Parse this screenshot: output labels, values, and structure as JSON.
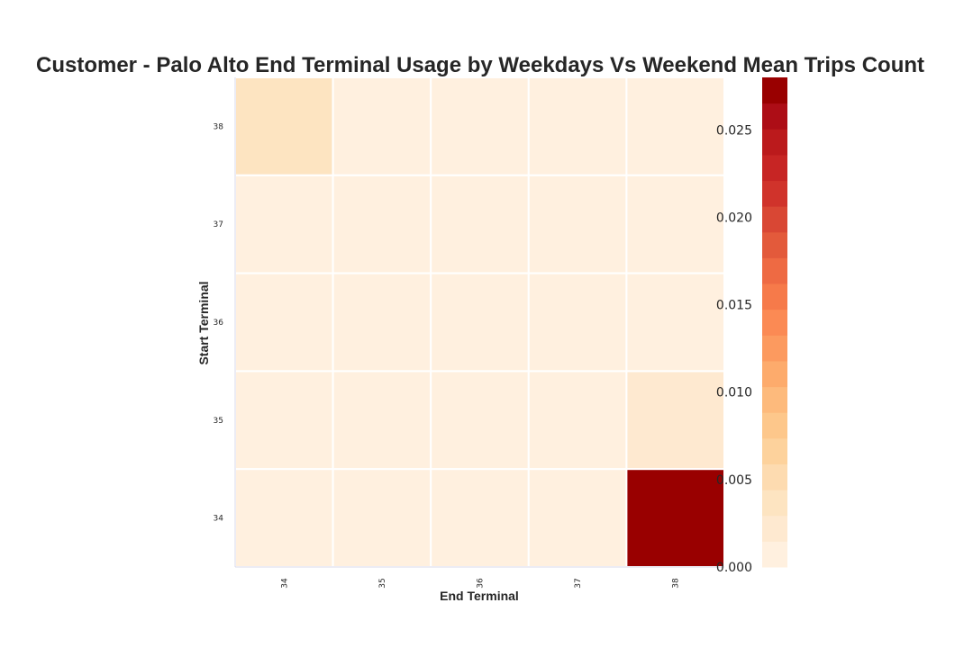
{
  "chart_data": {
    "type": "heatmap",
    "title": "Customer - Palo Alto End Terminal Usage by Weekdays Vs Weekend Mean Trips Count",
    "xlabel": "End Terminal",
    "ylabel": "Start Terminal",
    "x_categories": [
      "34",
      "35",
      "36",
      "37",
      "38"
    ],
    "y_categories": [
      "38",
      "37",
      "36",
      "35",
      "34"
    ],
    "values": [
      [
        0.0035,
        0.0005,
        0.0005,
        0.0005,
        0.0005
      ],
      [
        0.0005,
        0.0005,
        0.0005,
        0.0005,
        0.0005
      ],
      [
        0.0005,
        0.0005,
        0.0005,
        0.0005,
        0.0005
      ],
      [
        0.0005,
        0.0005,
        0.0005,
        0.0005,
        0.0015
      ],
      [
        0.0005,
        0.0005,
        0.0005,
        0.0005,
        0.028
      ]
    ],
    "colorbar": {
      "range": [
        0,
        0.028
      ],
      "ticks": [
        "0.000",
        "0.005",
        "0.010",
        "0.015",
        "0.020",
        "0.025"
      ],
      "tick_values": [
        0,
        0.005,
        0.01,
        0.015,
        0.02,
        0.025
      ],
      "colors": [
        "#fff0df",
        "#fee9d0",
        "#fde4c1",
        "#fddbb0",
        "#fdd29c",
        "#fdc78b",
        "#fdba7c",
        "#fdab6c",
        "#fc9a5f",
        "#fb8a54",
        "#f67a4a",
        "#ee6a43",
        "#e35a3b",
        "#d94734",
        "#d0332b",
        "#c72524",
        "#bb1a1c",
        "#ad0d16",
        "#990000"
      ]
    },
    "grid": true
  }
}
